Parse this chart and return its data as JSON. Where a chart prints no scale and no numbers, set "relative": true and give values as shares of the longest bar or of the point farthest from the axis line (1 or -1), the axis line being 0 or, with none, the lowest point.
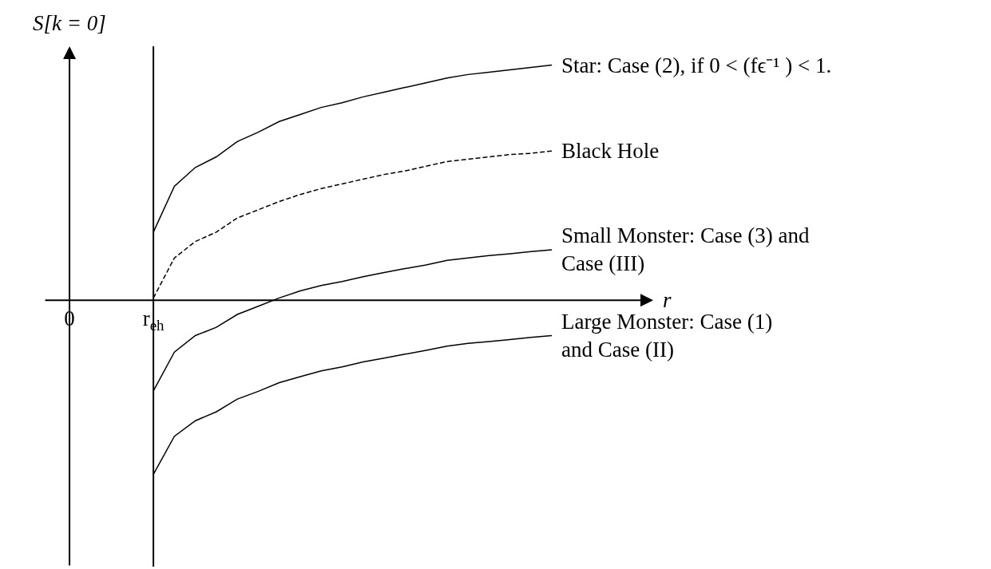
{
  "chart_data": {
    "type": "line",
    "relative": true,
    "xlabel": "r",
    "ylabel": "S[k = 0]",
    "categories": [
      "0",
      null,
      null,
      null,
      "r$_{eh}$",
      null,
      null,
      null,
      null,
      null,
      null,
      null,
      null,
      null,
      null,
      null,
      null,
      null,
      null,
      null,
      null,
      null,
      null,
      null
    ],
    "series": [
      {
        "name": "Star: Case (2), if 0 < (fϵ⁻¹ ) < 1.",
        "color": "#000000",
        "line_style": "solid",
        "values": [
          null,
          null,
          null,
          null,
          0.29,
          0.485,
          0.565,
          0.61,
          0.675,
          0.715,
          0.76,
          0.79,
          0.82,
          0.84,
          0.865,
          0.885,
          0.905,
          0.925,
          0.945,
          0.96,
          0.97,
          0.98,
          0.99,
          1.0
        ]
      },
      {
        "name": "Black Hole",
        "color": "#000000",
        "line_style": "dashed",
        "values": [
          null,
          null,
          null,
          null,
          0.01,
          0.18,
          0.25,
          0.29,
          0.35,
          0.385,
          0.42,
          0.45,
          0.475,
          0.495,
          0.515,
          0.535,
          0.55,
          0.57,
          0.59,
          0.6,
          0.61,
          0.62,
          0.625,
          0.635
        ]
      },
      {
        "name": "Small Monster: Case (3) and\nCase (III)",
        "color": "#000000",
        "line_style": "solid",
        "values": [
          null,
          null,
          null,
          null,
          -0.385,
          -0.22,
          -0.15,
          -0.115,
          -0.06,
          -0.025,
          0.01,
          0.04,
          0.063,
          0.08,
          0.1,
          0.118,
          0.135,
          0.15,
          0.17,
          0.18,
          0.19,
          0.198,
          0.207,
          0.215
        ]
      },
      {
        "name": "Large Monster: Case (1)\nand Case (II)",
        "color": "#000000",
        "line_style": "solid",
        "values": [
          null,
          null,
          null,
          null,
          -0.74,
          -0.578,
          -0.512,
          -0.474,
          -0.42,
          -0.387,
          -0.35,
          -0.325,
          -0.3,
          -0.283,
          -0.262,
          -0.246,
          -0.229,
          -0.213,
          -0.195,
          -0.183,
          -0.175,
          -0.167,
          -0.158,
          -0.15
        ]
      }
    ],
    "ref_lines": [
      {
        "axis": "x",
        "value": "r$_{eh}$",
        "color": "#000000"
      },
      {
        "axis": "y",
        "value": 0,
        "color": "#000000"
      }
    ],
    "marker": "none"
  }
}
